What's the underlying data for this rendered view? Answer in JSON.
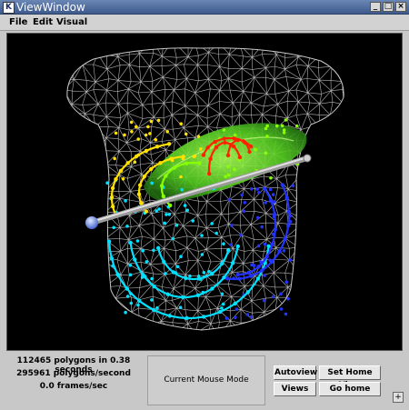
{
  "window": {
    "title": "ViewWindow",
    "app_icon_letter": "K",
    "controls": {
      "minimize": "_",
      "maximize": "□",
      "close": "×"
    }
  },
  "menu": {
    "items": [
      {
        "label": "File"
      },
      {
        "label": "Edit"
      },
      {
        "label": "Visual"
      }
    ]
  },
  "viewport": {
    "background": "#000000",
    "mesh_color": "#b4b4b4",
    "organ_color": "#55cc22",
    "fiber_colors": [
      "#ff2200",
      "#ffe000",
      "#88ff00",
      "#00e0ff",
      "#2233ff"
    ],
    "probe_tip_color": "#7799ff"
  },
  "stats": {
    "line1": "112465 polygons in 0.38 seconds",
    "line2": "295961 polygons/second",
    "line3": "0.0 frames/sec"
  },
  "mouse_mode": {
    "label": "Current Mouse Mode"
  },
  "buttons": {
    "autoview": "Autoview",
    "set_home_view": "Set Home View",
    "views": "Views",
    "go_home": "Go home"
  },
  "resize_handle": "+"
}
